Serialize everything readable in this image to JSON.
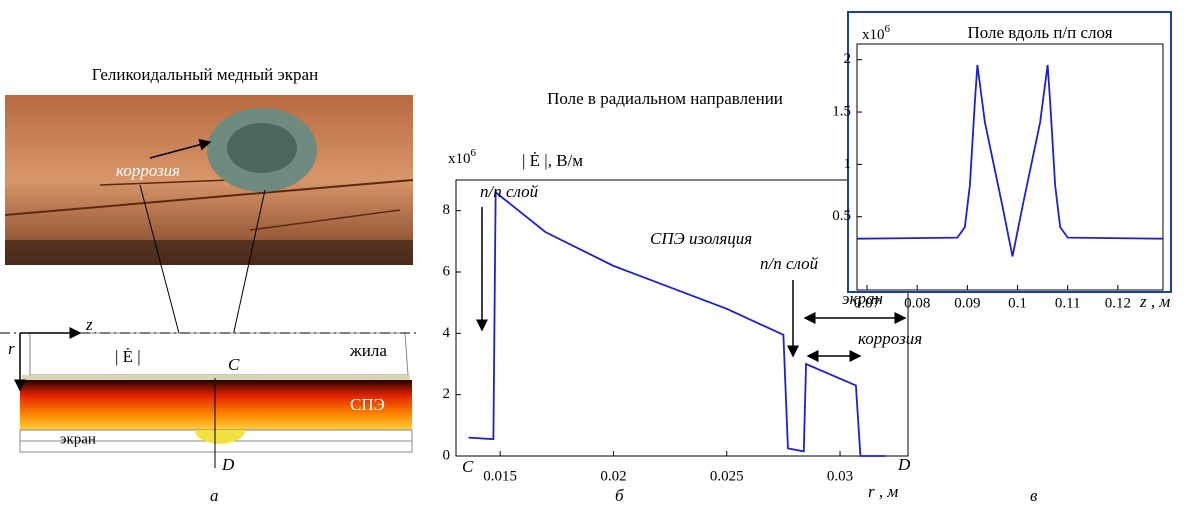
{
  "figure": {
    "photo_caption": "Геликоидальный медный экран",
    "photo_corrosion": "коррозия",
    "diagram": {
      "z": "z",
      "r": "r",
      "field": "| Ė |",
      "c": "C",
      "d": "D",
      "core": "жила",
      "xlpe": "СПЭ",
      "screen": "экран"
    },
    "panel_labels": [
      "а",
      "б",
      "в"
    ]
  },
  "chart_data": [
    {
      "type": "line",
      "title": "Поле в радиальном направлении",
      "exponent_base": "x10",
      "exponent": "6",
      "ylabel": "| Ė |, В/м",
      "xlabel": "r , м",
      "x_start_label": "C",
      "x_end_label": "D",
      "color": "#1f1fd0",
      "annotations": [
        "п/п слой",
        "п/п слой",
        "СПЭ изоляция",
        "экран",
        "коррозия"
      ],
      "x": [
        0.0136,
        0.0147,
        0.0148,
        0.017,
        0.02,
        0.025,
        0.0275,
        0.0277,
        0.0284,
        0.0285,
        0.0307,
        0.0309,
        0.032
      ],
      "values": [
        0.6,
        0.55,
        8.6,
        7.3,
        6.2,
        4.8,
        3.95,
        0.25,
        0.15,
        3.0,
        2.3,
        0,
        0
      ],
      "xlim": [
        0.01305,
        0.033
      ],
      "ylim": [
        0,
        9
      ],
      "xticks": [
        0.015,
        0.02,
        0.025,
        0.03
      ],
      "yticks": [
        0,
        2,
        4,
        6,
        8
      ]
    },
    {
      "type": "line",
      "title": "Поле вдоль п/п слоя",
      "exponent_base": "x10",
      "exponent": "6",
      "xlabel": "z , м",
      "color": "#1f1fd0",
      "x": [
        0.068,
        0.088,
        0.0895,
        0.0905,
        0.0915,
        0.092,
        0.0935,
        0.097,
        0.099,
        0.101,
        0.1045,
        0.106,
        0.1065,
        0.1075,
        0.1085,
        0.11,
        0.129
      ],
      "values": [
        0.29,
        0.3,
        0.4,
        0.8,
        1.6,
        1.95,
        1.4,
        0.6,
        0.12,
        0.6,
        1.4,
        1.95,
        1.6,
        0.8,
        0.4,
        0.3,
        0.29
      ],
      "xlim": [
        0.068,
        0.129
      ],
      "ylim": [
        -0.2,
        2.15
      ],
      "xticks": [
        0.07,
        0.08,
        0.09,
        0.1,
        0.11,
        0.12
      ],
      "yticks": [
        0.5,
        1,
        1.5,
        2
      ]
    }
  ]
}
